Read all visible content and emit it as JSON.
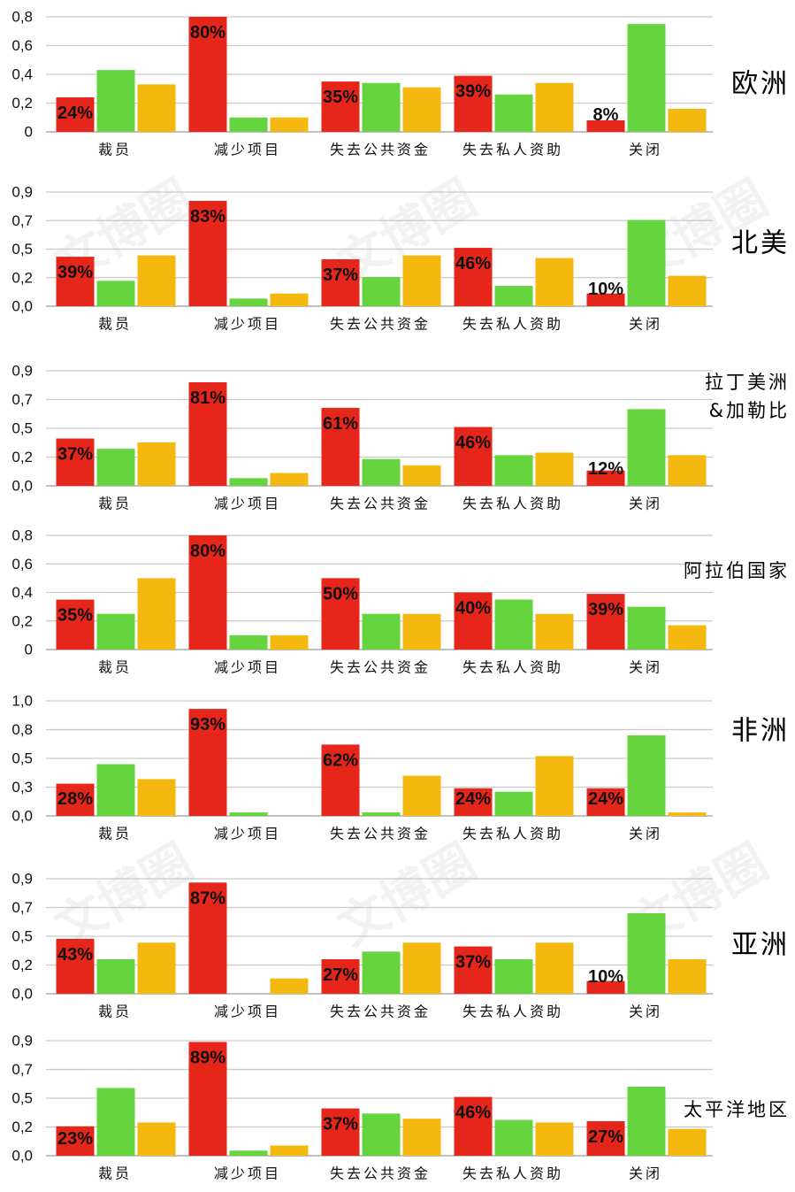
{
  "watermark": "文博圈",
  "colors": [
    "#e6261a",
    "#65d43e",
    "#f5b80e"
  ],
  "chart_data": [
    {
      "type": "bar",
      "title_lines": [
        "欧洲"
      ],
      "categories": [
        "裁员",
        "减少项目",
        "失去公共资金",
        "失去私人资助",
        "关闭"
      ],
      "ylim": [
        0,
        0.8
      ],
      "yticks": [
        0,
        0.2,
        0.4,
        0.6,
        0.8
      ],
      "ytick_labels": [
        "0",
        "0,2",
        "0,4",
        "0,6",
        "0,8"
      ],
      "series": [
        {
          "values": [
            0.24,
            0.8,
            0.35,
            0.39,
            0.08
          ],
          "data_labels": [
            "24%",
            "80%",
            "35%",
            "39%",
            "8%"
          ]
        },
        {
          "values": [
            0.43,
            0.1,
            0.34,
            0.26,
            0.75
          ]
        },
        {
          "values": [
            0.33,
            0.1,
            0.31,
            0.34,
            0.16
          ]
        }
      ]
    },
    {
      "type": "bar",
      "title_lines": [
        "北美"
      ],
      "categories": [
        "裁员",
        "减少项目",
        "失去公共资金",
        "失去私人资助",
        "关闭"
      ],
      "ylim": [
        0,
        0.9
      ],
      "yticks": [
        0,
        0.225,
        0.45,
        0.675,
        0.9
      ],
      "ytick_labels": [
        "0,0",
        "0,2",
        "0,5",
        "0,7",
        "0,9"
      ],
      "series": [
        {
          "values": [
            0.39,
            0.83,
            0.37,
            0.46,
            0.1
          ],
          "data_labels": [
            "39%",
            "83%",
            "37%",
            "46%",
            "10%"
          ]
        },
        {
          "values": [
            0.2,
            0.06,
            0.23,
            0.16,
            0.68
          ]
        },
        {
          "values": [
            0.4,
            0.1,
            0.4,
            0.38,
            0.24
          ]
        }
      ]
    },
    {
      "type": "bar",
      "title_lines": [
        "拉丁美洲",
        "&加勒比"
      ],
      "categories": [
        "裁员",
        "减少项目",
        "失去公共资金",
        "失去私人资助",
        "关闭"
      ],
      "ylim": [
        0,
        0.9
      ],
      "yticks": [
        0,
        0.225,
        0.45,
        0.675,
        0.9
      ],
      "ytick_labels": [
        "0,0",
        "0,2",
        "0,5",
        "0,7",
        "0,9"
      ],
      "series": [
        {
          "values": [
            0.37,
            0.81,
            0.61,
            0.46,
            0.12
          ],
          "data_labels": [
            "37%",
            "81%",
            "61%",
            "46%",
            "12%"
          ]
        },
        {
          "values": [
            0.29,
            0.06,
            0.21,
            0.24,
            0.6
          ]
        },
        {
          "values": [
            0.34,
            0.1,
            0.16,
            0.26,
            0.24
          ]
        }
      ]
    },
    {
      "type": "bar",
      "title_lines": [
        "阿拉伯国家"
      ],
      "categories": [
        "裁员",
        "减少项目",
        "失去公共资金",
        "失去私人资助",
        "关闭"
      ],
      "ylim": [
        0,
        0.8
      ],
      "yticks": [
        0,
        0.2,
        0.4,
        0.6,
        0.8
      ],
      "ytick_labels": [
        "0",
        "0,2",
        "0,4",
        "0,6",
        "0,8"
      ],
      "series": [
        {
          "values": [
            0.35,
            0.8,
            0.5,
            0.4,
            0.39
          ],
          "data_labels": [
            "35%",
            "80%",
            "50%",
            "40%",
            "39%"
          ]
        },
        {
          "values": [
            0.25,
            0.1,
            0.25,
            0.35,
            0.3
          ]
        },
        {
          "values": [
            0.5,
            0.1,
            0.25,
            0.25,
            0.17
          ]
        }
      ]
    },
    {
      "type": "bar",
      "title_lines": [
        "非洲"
      ],
      "categories": [
        "裁员",
        "减少项目",
        "失去公共资金",
        "失去私人资助",
        "关闭"
      ],
      "ylim": [
        0,
        1.0
      ],
      "yticks": [
        0,
        0.25,
        0.5,
        0.75,
        1.0
      ],
      "ytick_labels": [
        "0,0",
        "0,3",
        "0,5",
        "0,8",
        "1,0"
      ],
      "series": [
        {
          "values": [
            0.28,
            0.93,
            0.62,
            0.24,
            0.24
          ],
          "data_labels": [
            "28%",
            "93%",
            "62%",
            "24%",
            "24%"
          ]
        },
        {
          "values": [
            0.45,
            0.03,
            0.03,
            0.21,
            0.7
          ]
        },
        {
          "values": [
            0.32,
            0.0,
            0.35,
            0.52,
            0.03
          ]
        }
      ]
    },
    {
      "type": "bar",
      "title_lines": [
        "亚洲"
      ],
      "categories": [
        "裁员",
        "减少项目",
        "失去公共资金",
        "失去私人资助",
        "关闭"
      ],
      "ylim": [
        0,
        0.9
      ],
      "yticks": [
        0,
        0.225,
        0.45,
        0.675,
        0.9
      ],
      "ytick_labels": [
        "0,0",
        "0,2",
        "0,5",
        "0,7",
        "0,9"
      ],
      "series": [
        {
          "values": [
            0.43,
            0.87,
            0.27,
            0.37,
            0.1
          ],
          "data_labels": [
            "43%",
            "87%",
            "27%",
            "37%",
            "10%"
          ]
        },
        {
          "values": [
            0.27,
            0.0,
            0.33,
            0.27,
            0.63
          ]
        },
        {
          "values": [
            0.4,
            0.12,
            0.4,
            0.4,
            0.27
          ]
        }
      ]
    },
    {
      "type": "bar",
      "title_lines": [
        "太平洋地区"
      ],
      "categories": [
        "裁员",
        "减少项目",
        "失去公共资金",
        "失去私人资助",
        "关闭"
      ],
      "ylim": [
        0,
        0.9
      ],
      "yticks": [
        0,
        0.225,
        0.45,
        0.675,
        0.9
      ],
      "ytick_labels": [
        "0,0",
        "0,2",
        "0,5",
        "0,7",
        "0,9"
      ],
      "series": [
        {
          "values": [
            0.23,
            0.89,
            0.37,
            0.46,
            0.27
          ],
          "data_labels": [
            "23%",
            "89%",
            "37%",
            "46%",
            "27%"
          ]
        },
        {
          "values": [
            0.53,
            0.04,
            0.33,
            0.28,
            0.54
          ]
        },
        {
          "values": [
            0.26,
            0.08,
            0.29,
            0.26,
            0.21
          ]
        }
      ]
    }
  ]
}
